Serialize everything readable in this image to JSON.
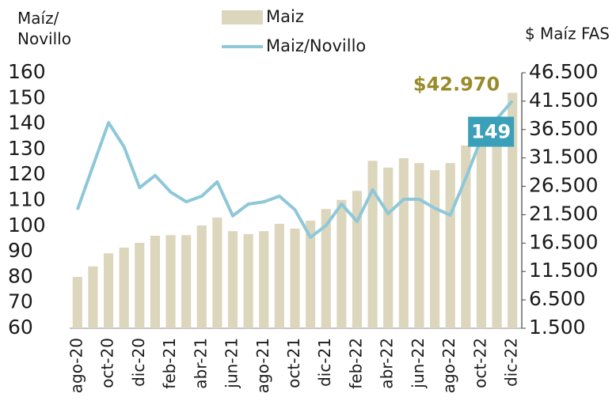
{
  "chart_data": {
    "type": "bar_line",
    "ylabel": "Maíz/\nNovillo",
    "y2label": "$ Maíz FAS",
    "categories": [
      "ago-20",
      null,
      "oct-20",
      null,
      "dic-20",
      null,
      "feb-21",
      null,
      "abr-21",
      null,
      "jun-21",
      null,
      "ago-21",
      null,
      "oct-21",
      null,
      "dic-21",
      null,
      "feb-22",
      null,
      "abr-22",
      null,
      "jun-22",
      null,
      "ago-22",
      null,
      "oct-22",
      null,
      "dic-22"
    ],
    "series": [
      {
        "name": "Maiz",
        "type": "bar",
        "axis": "y2",
        "color": "#dcd6bd",
        "values": [
          10550,
          12400,
          14700,
          15700,
          16550,
          17800,
          17900,
          17900,
          19600,
          21000,
          18600,
          18100,
          18600,
          19900,
          19050,
          20450,
          22500,
          24100,
          25700,
          31000,
          29800,
          31450,
          30600,
          29350,
          30600,
          33700,
          35600,
          38400,
          42970
        ],
        "value_labels": [
          null,
          null,
          null,
          null,
          null,
          null,
          null,
          null,
          null,
          null,
          null,
          null,
          null,
          null,
          null,
          null,
          null,
          null,
          null,
          null,
          null,
          null,
          null,
          null,
          null,
          null,
          null,
          null,
          "$42.970"
        ]
      },
      {
        "name": "Maiz/Novillo",
        "type": "line",
        "axis": "y",
        "color": "#8ec8d8",
        "values": [
          106.4,
          123.5,
          140.5,
          131,
          115,
          119.8,
          113.3,
          109.5,
          111.7,
          117.3,
          104,
          108.6,
          109.5,
          111.7,
          106.4,
          95.6,
          100.2,
          108.6,
          101.8,
          114.2,
          104.9,
          110.5,
          110.5,
          107,
          104.3,
          118.8,
          134.3,
          142,
          149
        ],
        "value_labels": [
          null,
          null,
          null,
          null,
          null,
          null,
          null,
          null,
          null,
          null,
          null,
          null,
          null,
          null,
          null,
          null,
          null,
          null,
          null,
          null,
          null,
          null,
          null,
          null,
          null,
          null,
          null,
          null,
          "149"
        ]
      }
    ],
    "ylim": [
      60,
      160
    ],
    "yticks": [
      60,
      70,
      80,
      90,
      100,
      110,
      120,
      130,
      140,
      150,
      160
    ],
    "y2lim": [
      1500,
      46500
    ],
    "y2ticks": [
      {
        "value": 1500,
        "label": "1.500"
      },
      {
        "value": 6500,
        "label": "6.500"
      },
      {
        "value": 11500,
        "label": "11.500"
      },
      {
        "value": 16500,
        "label": "16.500"
      },
      {
        "value": 21500,
        "label": "21.500"
      },
      {
        "value": 26500,
        "label": "26.500"
      },
      {
        "value": 31500,
        "label": "31.500"
      },
      {
        "value": 36500,
        "label": "36.500"
      },
      {
        "value": 41500,
        "label": "41.500"
      },
      {
        "value": 46500,
        "label": "46.500"
      }
    ],
    "bar_label_color": "#9a8b2a",
    "line_label_box_color": "#3a9fb8"
  }
}
